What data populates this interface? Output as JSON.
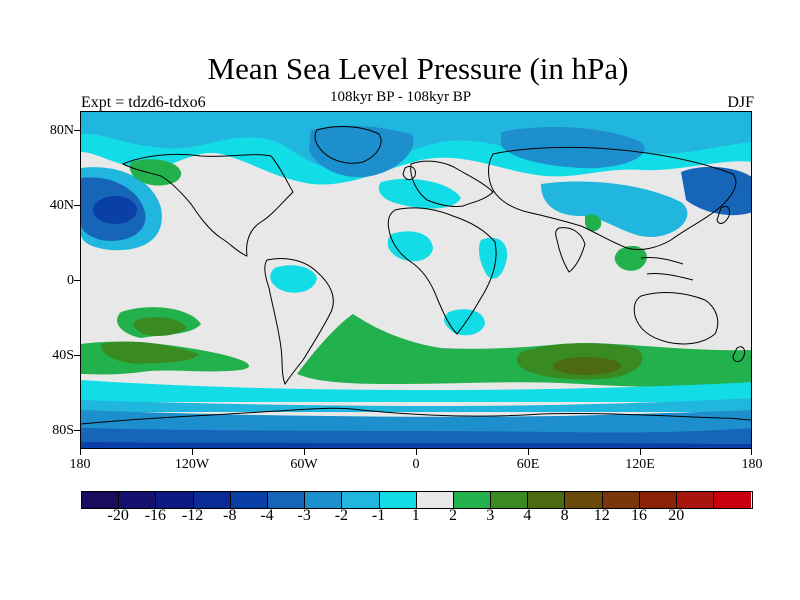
{
  "title": "Mean Sea Level Pressure (in hPa)",
  "subtitle": "108kyr BP - 108kyr BP",
  "left_label": "Expt = tdzd6-tdxo6",
  "right_label": "DJF",
  "y_ticks": [
    "80N",
    "40N",
    "0",
    "40S",
    "80S"
  ],
  "x_ticks": [
    "180",
    "120W",
    "60W",
    "0",
    "60E",
    "120E",
    "180"
  ],
  "colorbar": {
    "colors": [
      "#1a0b5e",
      "#14106e",
      "#0e1a84",
      "#0a2a98",
      "#0b3fa8",
      "#1665b9",
      "#1d8fcd",
      "#21b6dd",
      "#12dde6",
      "#e8e8e8",
      "#22b14c",
      "#3a8a22",
      "#4c6b10",
      "#6a4a08",
      "#7a3608",
      "#8a2208",
      "#a8140e",
      "#c8000e"
    ],
    "labels": [
      "-20",
      "-16",
      "-12",
      "-8",
      "-4",
      "-3",
      "-2",
      "-1",
      "1",
      "2",
      "3",
      "4",
      "8",
      "12",
      "16",
      "20"
    ]
  },
  "map": {
    "projection": "equirectangular",
    "lon_range": [
      -180,
      180
    ],
    "lat_range": [
      -90,
      90
    ],
    "background_level": "-1 to 1",
    "features": [
      {
        "kind": "band",
        "level": "-2",
        "color": "#1d8fcd",
        "desc": "southern ocean low band"
      },
      {
        "kind": "band",
        "level": "-3",
        "color": "#1665b9",
        "desc": "antarctic margin"
      },
      {
        "kind": "blob",
        "level": "-4",
        "color": "#0b3fa8",
        "desc": "north pacific low"
      },
      {
        "kind": "blob",
        "level": "2",
        "color": "#22b14c",
        "desc": "south pacific high"
      },
      {
        "kind": "blob",
        "level": "3",
        "color": "#3a8a22",
        "desc": "south indian ocean high"
      },
      {
        "kind": "blob",
        "level": "4",
        "color": "#4c6b10",
        "desc": "south indian core"
      }
    ]
  }
}
